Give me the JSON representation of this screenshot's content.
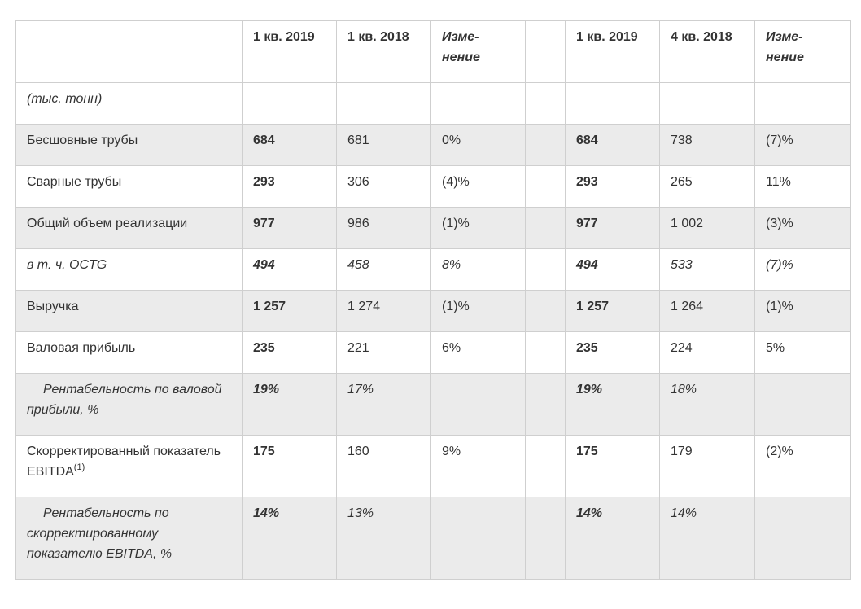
{
  "header": {
    "col1": "1 кв. 2019",
    "col2": "1 кв. 2018",
    "col3_line1": "Изме-",
    "col3_line2": "нение",
    "col4": "1 кв. 2019",
    "col5": "4 кв. 2018",
    "col6_line1": "Изме-",
    "col6_line2": "нение"
  },
  "unit_label": "(тыс. тонн)",
  "rows": [
    {
      "label": "Бесшовные трубы",
      "v1": "684",
      "v2": "681",
      "v3": "0%",
      "v4": "684",
      "v5": "738",
      "v6": "(7)%"
    },
    {
      "label": "Сварные трубы",
      "v1": "293",
      "v2": "306",
      "v3": "(4)%",
      "v4": "293",
      "v5": "265",
      "v6": "11%"
    },
    {
      "label": "Общий объем реализации",
      "v1": "977",
      "v2": "986",
      "v3": "(1)%",
      "v4": "977",
      "v5": "1 002",
      "v6": "(3)%"
    },
    {
      "label": "в т. ч. OCTG",
      "v1": "494",
      "v2": "458",
      "v3": "8%",
      "v4": "494",
      "v5": "533",
      "v6": "(7)%"
    },
    {
      "label": "Выручка",
      "v1": "1 257",
      "v2": "1 274",
      "v3": "(1)%",
      "v4": "1 257",
      "v5": "1 264",
      "v6": "(1)%"
    },
    {
      "label": "Валовая прибыль",
      "v1": "235",
      "v2": "221",
      "v3": "6%",
      "v4": "235",
      "v5": "224",
      "v6": "5%"
    },
    {
      "label": "Рентабельность по валовой прибыли, %",
      "v1": "19%",
      "v2": "17%",
      "v3": "",
      "v4": "19%",
      "v5": "18%",
      "v6": ""
    },
    {
      "label": "Скорректированный показатель EBITDA",
      "label_sup": "(1)",
      "v1": "175",
      "v2": "160",
      "v3": "9%",
      "v4": "175",
      "v5": "179",
      "v6": "(2)%"
    },
    {
      "label": "Рентабельность по скорректированному показателю EBITDA, %",
      "v1": "14%",
      "v2": "13%",
      "v3": "",
      "v4": "14%",
      "v5": "14%",
      "v6": ""
    }
  ]
}
